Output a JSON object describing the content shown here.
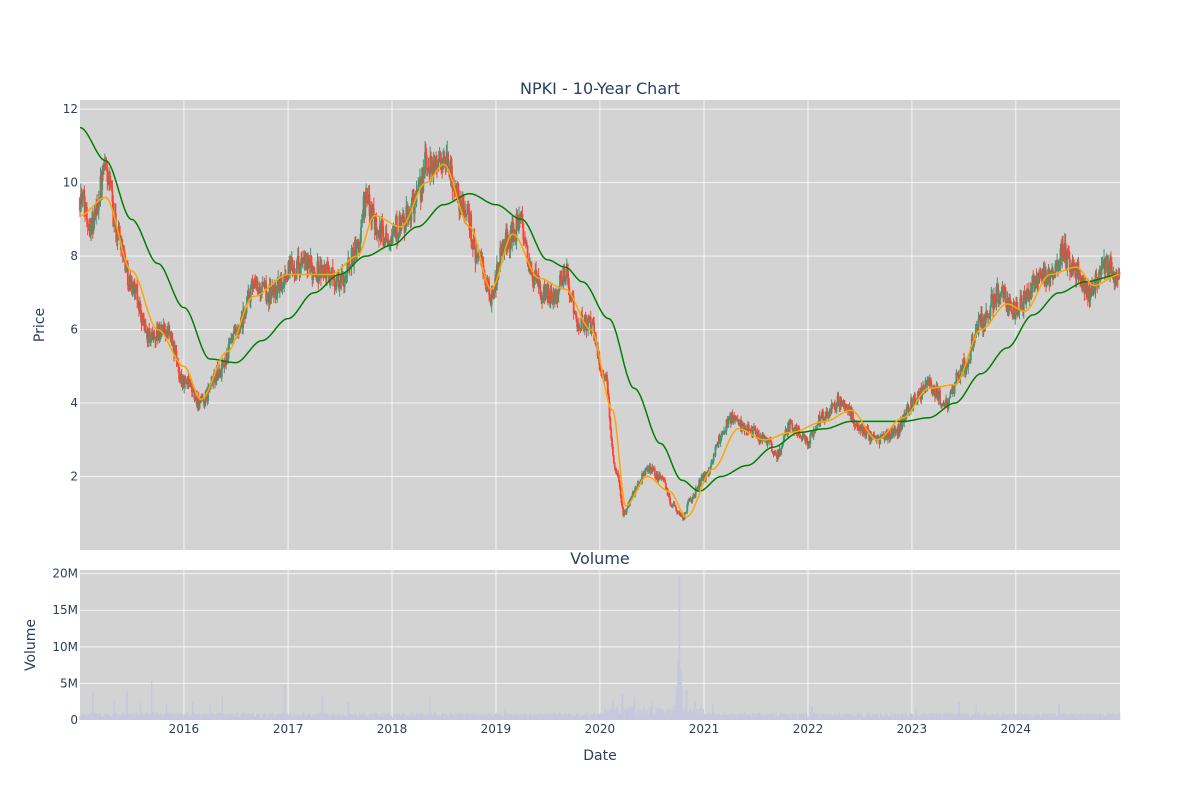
{
  "chart_data": [
    {
      "type": "candlestick",
      "title": "NPKI - 10-Year Chart",
      "ylabel": "Price",
      "ylim": [
        0,
        12.25
      ],
      "y_ticks": [
        2,
        4,
        6,
        8,
        10,
        12
      ],
      "x_range": [
        "2015-01-01",
        "2025-01-01"
      ],
      "x_ticks": [
        "2016-01-01",
        "2017-01-01",
        "2018-01-01",
        "2019-01-01",
        "2020-01-01",
        "2021-01-01",
        "2022-01-01",
        "2023-01-01",
        "2024-01-01"
      ],
      "x_tick_labels": [
        "2016",
        "2017",
        "2018",
        "2019",
        "2020",
        "2021",
        "2022",
        "2023",
        "2024"
      ],
      "grid": true,
      "colors": {
        "up": "#3D9970",
        "down": "#FF4136",
        "background": "#D3D3D3",
        "ma_short": "#FFA500",
        "ma_long": "#008000"
      },
      "price_keypoints": [
        [
          "2015-01-01",
          9.6
        ],
        [
          "2015-02-10",
          8.9
        ],
        [
          "2015-04-01",
          10.3
        ],
        [
          "2015-05-15",
          8.6
        ],
        [
          "2015-07-01",
          7.2
        ],
        [
          "2015-09-01",
          5.8
        ],
        [
          "2015-11-01",
          6.0
        ],
        [
          "2016-01-01",
          4.6
        ],
        [
          "2016-03-01",
          4.0
        ],
        [
          "2016-05-01",
          4.8
        ],
        [
          "2016-07-01",
          5.8
        ],
        [
          "2016-09-01",
          7.1
        ],
        [
          "2016-11-01",
          7.0
        ],
        [
          "2017-02-01",
          7.8
        ],
        [
          "2017-05-01",
          7.6
        ],
        [
          "2017-07-01",
          7.3
        ],
        [
          "2017-09-01",
          8.2
        ],
        [
          "2017-10-01",
          9.5
        ],
        [
          "2017-12-01",
          8.6
        ],
        [
          "2018-02-01",
          8.8
        ],
        [
          "2018-04-01",
          9.6
        ],
        [
          "2018-05-01",
          10.5
        ],
        [
          "2018-07-01",
          10.6
        ],
        [
          "2018-09-15",
          9.3
        ],
        [
          "2018-11-01",
          7.9
        ],
        [
          "2018-12-15",
          6.9
        ],
        [
          "2019-02-01",
          8.4
        ],
        [
          "2019-04-01",
          8.9
        ],
        [
          "2019-05-01",
          7.6
        ],
        [
          "2019-06-15",
          6.9
        ],
        [
          "2019-08-01",
          7.0
        ],
        [
          "2019-09-01",
          7.6
        ],
        [
          "2019-10-15",
          6.2
        ],
        [
          "2019-12-01",
          6.1
        ],
        [
          "2020-01-15",
          4.8
        ],
        [
          "2020-03-01",
          2.0
        ],
        [
          "2020-03-25",
          1.0
        ],
        [
          "2020-05-01",
          1.6
        ],
        [
          "2020-06-15",
          2.2
        ],
        [
          "2020-08-01",
          2.0
        ],
        [
          "2020-09-15",
          1.2
        ],
        [
          "2020-10-20",
          0.9
        ],
        [
          "2020-11-15",
          1.4
        ],
        [
          "2021-01-01",
          2.0
        ],
        [
          "2021-03-01",
          3.0
        ],
        [
          "2021-04-01",
          3.6
        ],
        [
          "2021-06-01",
          3.3
        ],
        [
          "2021-08-01",
          3.0
        ],
        [
          "2021-09-15",
          2.6
        ],
        [
          "2021-11-01",
          3.4
        ],
        [
          "2022-01-01",
          3.0
        ],
        [
          "2022-03-01",
          3.7
        ],
        [
          "2022-05-01",
          4.1
        ],
        [
          "2022-07-01",
          3.3
        ],
        [
          "2022-09-01",
          3.0
        ],
        [
          "2022-11-01",
          3.2
        ],
        [
          "2023-01-01",
          4.0
        ],
        [
          "2023-03-01",
          4.5
        ],
        [
          "2023-05-01",
          4.0
        ],
        [
          "2023-07-01",
          5.0
        ],
        [
          "2023-09-01",
          6.2
        ],
        [
          "2023-11-01",
          7.0
        ],
        [
          "2024-01-01",
          6.5
        ],
        [
          "2024-03-01",
          7.2
        ],
        [
          "2024-05-01",
          7.5
        ],
        [
          "2024-06-15",
          8.1
        ],
        [
          "2024-08-01",
          7.6
        ],
        [
          "2024-09-15",
          7.0
        ],
        [
          "2024-11-01",
          7.8
        ],
        [
          "2024-12-31",
          7.4
        ]
      ],
      "ma_short_keypoints": [
        [
          "2015-01-01",
          9.1
        ],
        [
          "2015-04-01",
          9.6
        ],
        [
          "2015-07-01",
          7.6
        ],
        [
          "2015-10-01",
          6.0
        ],
        [
          "2016-01-01",
          5.0
        ],
        [
          "2016-03-01",
          4.1
        ],
        [
          "2016-06-01",
          5.4
        ],
        [
          "2016-09-01",
          6.9
        ],
        [
          "2017-01-01",
          7.5
        ],
        [
          "2017-06-01",
          7.5
        ],
        [
          "2017-09-01",
          8.0
        ],
        [
          "2017-11-01",
          9.1
        ],
        [
          "2018-02-01",
          8.8
        ],
        [
          "2018-05-01",
          10.0
        ],
        [
          "2018-07-01",
          10.5
        ],
        [
          "2018-10-01",
          8.8
        ],
        [
          "2018-12-15",
          7.1
        ],
        [
          "2019-03-01",
          8.6
        ],
        [
          "2019-06-01",
          7.4
        ],
        [
          "2019-09-01",
          7.1
        ],
        [
          "2019-12-01",
          6.0
        ],
        [
          "2020-02-15",
          3.8
        ],
        [
          "2020-04-01",
          1.2
        ],
        [
          "2020-06-15",
          2.0
        ],
        [
          "2020-09-01",
          1.6
        ],
        [
          "2020-10-31",
          0.9
        ],
        [
          "2021-02-01",
          2.2
        ],
        [
          "2021-05-01",
          3.3
        ],
        [
          "2021-08-01",
          3.0
        ],
        [
          "2021-11-01",
          3.2
        ],
        [
          "2022-03-01",
          3.5
        ],
        [
          "2022-06-01",
          3.8
        ],
        [
          "2022-09-01",
          3.0
        ],
        [
          "2022-12-01",
          3.6
        ],
        [
          "2023-03-01",
          4.4
        ],
        [
          "2023-06-01",
          4.5
        ],
        [
          "2023-09-01",
          6.0
        ],
        [
          "2023-12-01",
          6.7
        ],
        [
          "2024-02-01",
          6.5
        ],
        [
          "2024-05-01",
          7.5
        ],
        [
          "2024-08-01",
          7.7
        ],
        [
          "2024-10-01",
          7.2
        ],
        [
          "2024-12-31",
          7.5
        ]
      ],
      "ma_long_keypoints": [
        [
          "2015-01-01",
          11.5
        ],
        [
          "2015-04-01",
          10.6
        ],
        [
          "2015-07-01",
          9.0
        ],
        [
          "2015-10-01",
          7.8
        ],
        [
          "2016-01-01",
          6.6
        ],
        [
          "2016-04-01",
          5.2
        ],
        [
          "2016-07-01",
          5.1
        ],
        [
          "2016-10-01",
          5.7
        ],
        [
          "2017-01-01",
          6.3
        ],
        [
          "2017-04-01",
          7.0
        ],
        [
          "2017-07-01",
          7.5
        ],
        [
          "2017-10-01",
          8.0
        ],
        [
          "2018-01-01",
          8.3
        ],
        [
          "2018-04-01",
          8.8
        ],
        [
          "2018-07-01",
          9.4
        ],
        [
          "2018-10-01",
          9.7
        ],
        [
          "2019-01-01",
          9.4
        ],
        [
          "2019-04-01",
          9.0
        ],
        [
          "2019-07-01",
          7.9
        ],
        [
          "2019-09-01",
          7.7
        ],
        [
          "2019-11-01",
          7.3
        ],
        [
          "2020-02-01",
          6.3
        ],
        [
          "2020-05-01",
          4.4
        ],
        [
          "2020-08-01",
          2.9
        ],
        [
          "2020-10-15",
          1.9
        ],
        [
          "2020-12-15",
          1.6
        ],
        [
          "2021-03-01",
          2.0
        ],
        [
          "2021-06-01",
          2.3
        ],
        [
          "2021-09-01",
          2.8
        ],
        [
          "2021-12-01",
          3.2
        ],
        [
          "2022-03-01",
          3.3
        ],
        [
          "2022-06-01",
          3.5
        ],
        [
          "2022-09-01",
          3.5
        ],
        [
          "2022-12-01",
          3.5
        ],
        [
          "2023-03-01",
          3.6
        ],
        [
          "2023-06-01",
          4.0
        ],
        [
          "2023-09-01",
          4.8
        ],
        [
          "2023-12-01",
          5.5
        ],
        [
          "2024-03-01",
          6.4
        ],
        [
          "2024-06-01",
          7.0
        ],
        [
          "2024-09-01",
          7.3
        ],
        [
          "2024-12-31",
          7.5
        ]
      ]
    },
    {
      "type": "bar",
      "title": "Volume",
      "xlabel": "Date",
      "ylabel": "Volume",
      "ylim": [
        0,
        20500000
      ],
      "y_ticks": [
        0,
        5000000,
        10000000,
        15000000,
        20000000
      ],
      "y_tick_labels": [
        "0",
        "5M",
        "10M",
        "15M",
        "20M"
      ],
      "x_range": [
        "2015-01-01",
        "2025-01-01"
      ],
      "x_ticks": [
        "2016-01-01",
        "2017-01-01",
        "2018-01-01",
        "2019-01-01",
        "2020-01-01",
        "2021-01-01",
        "2022-01-01",
        "2023-01-01",
        "2024-01-01"
      ],
      "x_tick_labels": [
        "2016",
        "2017",
        "2018",
        "2019",
        "2020",
        "2021",
        "2022",
        "2023",
        "2024"
      ],
      "grid": true,
      "colors": {
        "bar": "#C7C7DE",
        "background": "#D3D3D3"
      },
      "baseline_volume": 650000,
      "volume_spikes": [
        [
          "2015-02-15",
          3800000
        ],
        [
          "2015-05-01",
          2600000
        ],
        [
          "2015-06-15",
          3900000
        ],
        [
          "2015-08-01",
          2400000
        ],
        [
          "2015-09-10",
          5600000
        ],
        [
          "2015-11-01",
          2100000
        ],
        [
          "2016-02-01",
          2500000
        ],
        [
          "2016-04-01",
          2300000
        ],
        [
          "2016-05-15",
          3300000
        ],
        [
          "2016-12-20",
          4800000
        ],
        [
          "2017-05-01",
          3400000
        ],
        [
          "2017-08-01",
          2400000
        ],
        [
          "2018-05-15",
          3300000
        ],
        [
          "2019-02-01",
          1500000
        ],
        [
          "2020-02-15",
          2600000
        ],
        [
          "2020-03-20",
          3600000
        ],
        [
          "2020-05-01",
          3100000
        ],
        [
          "2020-07-01",
          2500000
        ],
        [
          "2020-10-01",
          8500000
        ],
        [
          "2020-10-06",
          19700000
        ],
        [
          "2020-10-12",
          7000000
        ],
        [
          "2020-11-01",
          4200000
        ],
        [
          "2020-12-01",
          2600000
        ],
        [
          "2021-02-01",
          2100000
        ],
        [
          "2022-01-15",
          1800000
        ],
        [
          "2023-01-15",
          1800000
        ],
        [
          "2023-06-15",
          2400000
        ],
        [
          "2023-08-15",
          2200000
        ],
        [
          "2024-06-01",
          2300000
        ]
      ]
    }
  ]
}
